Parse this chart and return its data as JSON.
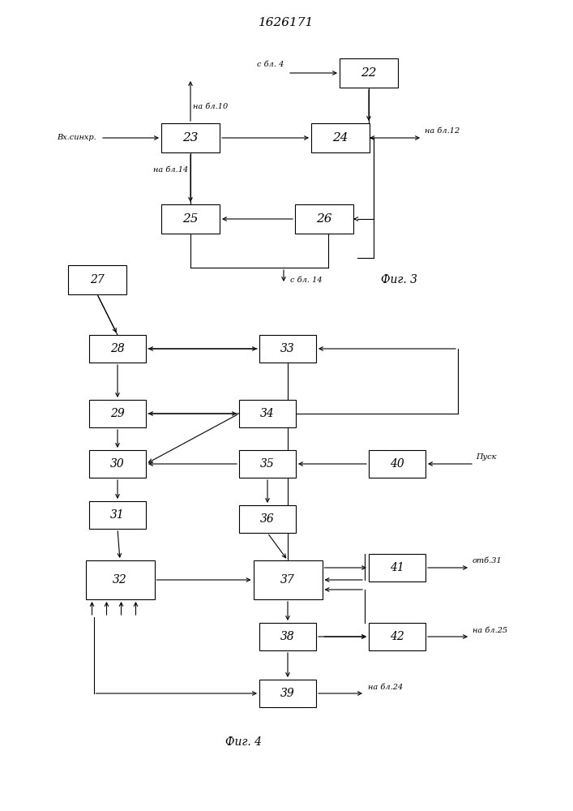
{
  "title": "1626171",
  "fig3_label": "Фиг. 3",
  "fig4_label": "Фиг. 4",
  "bg_color": "#ffffff"
}
